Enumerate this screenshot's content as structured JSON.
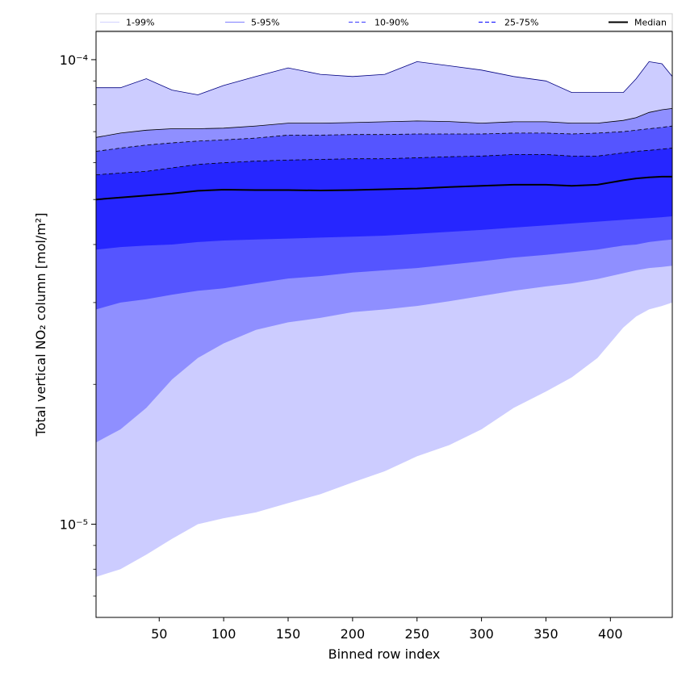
{
  "chart_data": {
    "type": "area",
    "xlabel": "Binned row index",
    "ylabel": "Total vertical NO₂ column [mol/m²]",
    "xlim": [
      1,
      448
    ],
    "ylim": [
      6.3e-06,
      0.000115
    ],
    "yscale": "log",
    "grid": false,
    "legend_placement": "top",
    "x_ticks": [
      50,
      100,
      150,
      200,
      250,
      300,
      350,
      400
    ],
    "y_ticks": [
      {
        "value": 1e-05,
        "label": "10⁻⁵"
      },
      {
        "value": 0.0001,
        "label": "10⁻⁴"
      }
    ],
    "x": [
      1,
      20,
      40,
      60,
      80,
      100,
      125,
      150,
      175,
      200,
      225,
      250,
      275,
      300,
      325,
      350,
      370,
      390,
      410,
      420,
      430,
      440,
      448
    ],
    "series": [
      {
        "name": "1-99%",
        "color": "#ccccff",
        "line_color": "#000080",
        "line_style": "solid",
        "lower": [
          7.7e-06,
          8e-06,
          8.6e-06,
          9.3e-06,
          1e-05,
          1.03e-05,
          1.06e-05,
          1.11e-05,
          1.16e-05,
          1.23e-05,
          1.3e-05,
          1.4e-05,
          1.48e-05,
          1.6e-05,
          1.78e-05,
          1.93e-05,
          2.07e-05,
          2.28e-05,
          2.65e-05,
          2.8e-05,
          2.9e-05,
          2.95e-05,
          3e-05
        ],
        "upper": [
          8.7e-05,
          8.7e-05,
          9.1e-05,
          8.6e-05,
          8.4e-05,
          8.8e-05,
          9.2e-05,
          9.6e-05,
          9.3e-05,
          9.2e-05,
          9.3e-05,
          9.9e-05,
          9.7e-05,
          9.5e-05,
          9.2e-05,
          9e-05,
          8.5e-05,
          8.5e-05,
          8.5e-05,
          9.1e-05,
          9.9e-05,
          9.8e-05,
          9.2e-05
        ]
      },
      {
        "name": "5-95%",
        "color": "#8f8fff",
        "line_color": "#000000",
        "line_style": "solid",
        "lower": [
          1.5e-05,
          1.6e-05,
          1.78e-05,
          2.05e-05,
          2.28e-05,
          2.45e-05,
          2.62e-05,
          2.72e-05,
          2.78e-05,
          2.86e-05,
          2.9e-05,
          2.95e-05,
          3.02e-05,
          3.1e-05,
          3.18e-05,
          3.25e-05,
          3.3e-05,
          3.37e-05,
          3.47e-05,
          3.52e-05,
          3.56e-05,
          3.58e-05,
          3.6e-05
        ],
        "upper": [
          6.8e-05,
          6.95e-05,
          7.05e-05,
          7.1e-05,
          7.1e-05,
          7.12e-05,
          7.2e-05,
          7.3e-05,
          7.3e-05,
          7.32e-05,
          7.35e-05,
          7.38e-05,
          7.36e-05,
          7.3e-05,
          7.35e-05,
          7.35e-05,
          7.3e-05,
          7.3e-05,
          7.4e-05,
          7.5e-05,
          7.7e-05,
          7.8e-05,
          7.85e-05
        ]
      },
      {
        "name": "10-90%",
        "color": "#5555ff",
        "line_color": "#000000",
        "line_style": "dashed",
        "lower": [
          2.9e-05,
          3e-05,
          3.05e-05,
          3.12e-05,
          3.18e-05,
          3.22e-05,
          3.3e-05,
          3.38e-05,
          3.42e-05,
          3.48e-05,
          3.52e-05,
          3.56e-05,
          3.62e-05,
          3.68e-05,
          3.75e-05,
          3.8e-05,
          3.85e-05,
          3.9e-05,
          3.98e-05,
          4e-05,
          4.05e-05,
          4.08e-05,
          4.1e-05
        ],
        "upper": [
          6.35e-05,
          6.45e-05,
          6.55e-05,
          6.62e-05,
          6.68e-05,
          6.72e-05,
          6.78e-05,
          6.88e-05,
          6.88e-05,
          6.9e-05,
          6.9e-05,
          6.92e-05,
          6.92e-05,
          6.92e-05,
          6.95e-05,
          6.95e-05,
          6.92e-05,
          6.95e-05,
          7e-05,
          7.05e-05,
          7.1e-05,
          7.15e-05,
          7.2e-05
        ]
      },
      {
        "name": "25-75%",
        "color": "#2626ff",
        "line_color": "#000000",
        "line_style": "dashed",
        "lower": [
          3.9e-05,
          3.95e-05,
          3.98e-05,
          4e-05,
          4.05e-05,
          4.08e-05,
          4.1e-05,
          4.12e-05,
          4.14e-05,
          4.16e-05,
          4.18e-05,
          4.22e-05,
          4.26e-05,
          4.3e-05,
          4.35e-05,
          4.4e-05,
          4.44e-05,
          4.48e-05,
          4.52e-05,
          4.54e-05,
          4.56e-05,
          4.58e-05,
          4.6e-05
        ],
        "upper": [
          5.65e-05,
          5.7e-05,
          5.75e-05,
          5.85e-05,
          5.95e-05,
          6e-05,
          6.05e-05,
          6.08e-05,
          6.1e-05,
          6.12e-05,
          6.12e-05,
          6.15e-05,
          6.18e-05,
          6.2e-05,
          6.25e-05,
          6.25e-05,
          6.2e-05,
          6.2e-05,
          6.3e-05,
          6.35e-05,
          6.38e-05,
          6.42e-05,
          6.45e-05
        ]
      },
      {
        "name": "Median",
        "color": "#000000",
        "line_style": "solid",
        "values": [
          5e-05,
          5.05e-05,
          5.1e-05,
          5.15e-05,
          5.22e-05,
          5.25e-05,
          5.24e-05,
          5.24e-05,
          5.23e-05,
          5.24e-05,
          5.26e-05,
          5.28e-05,
          5.32e-05,
          5.35e-05,
          5.38e-05,
          5.38e-05,
          5.35e-05,
          5.38e-05,
          5.5e-05,
          5.55e-05,
          5.58e-05,
          5.6e-05,
          5.6e-05
        ]
      }
    ]
  }
}
